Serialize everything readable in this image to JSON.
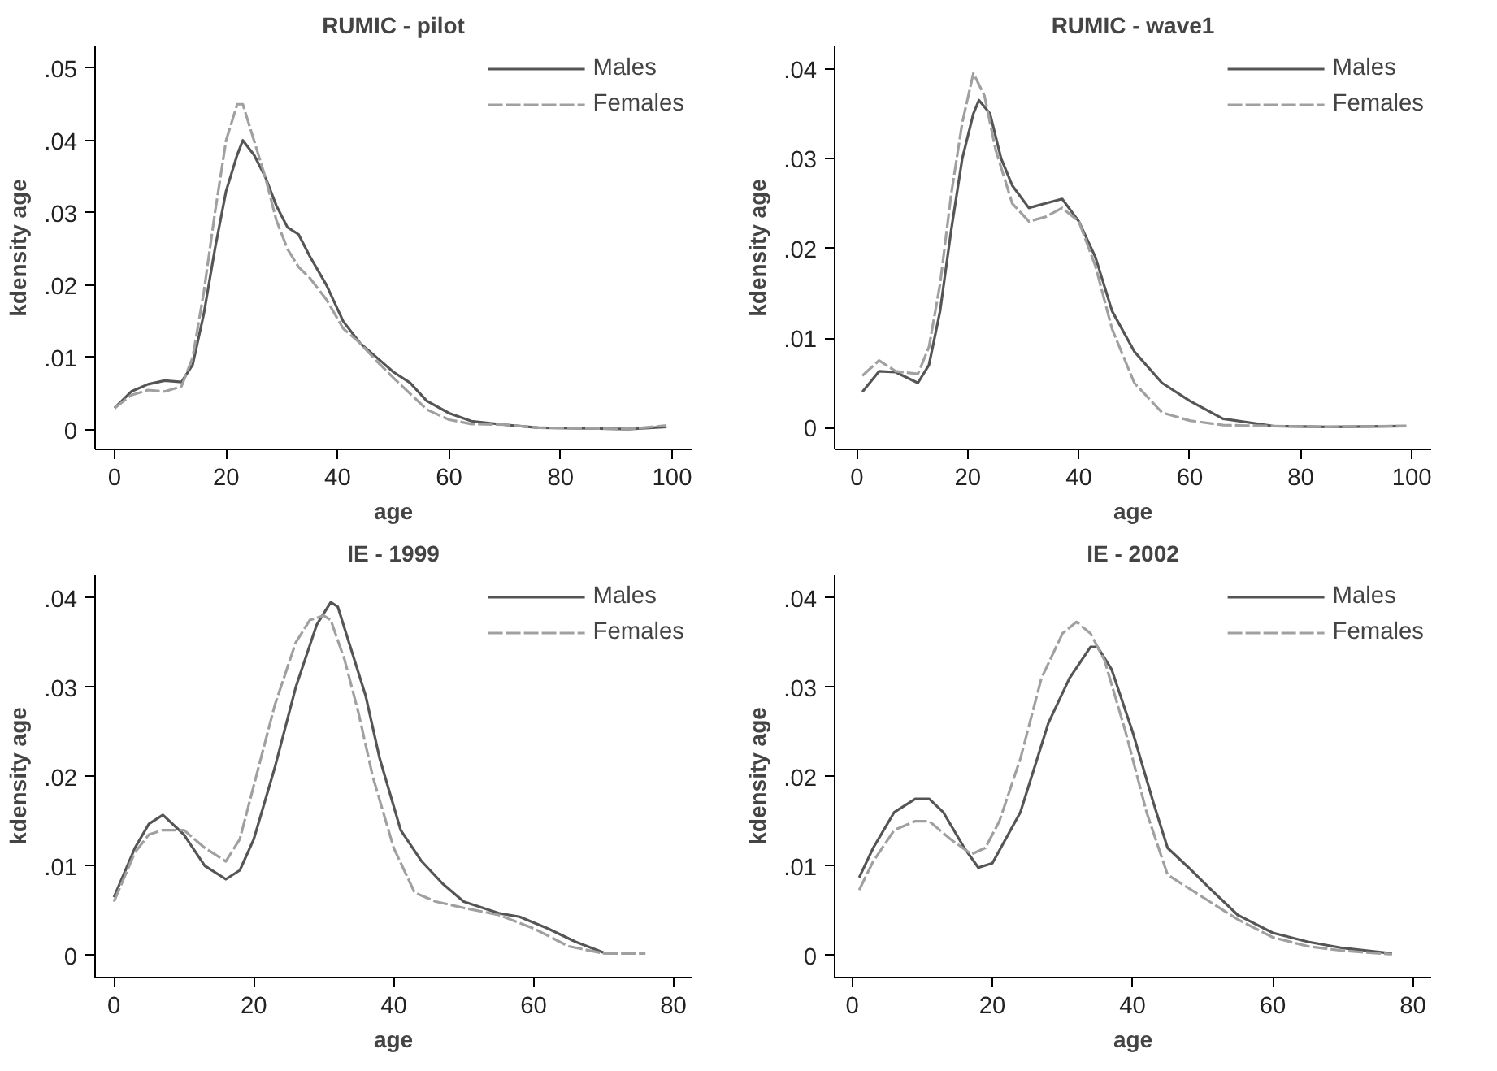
{
  "chart_data": [
    {
      "type": "line",
      "title": "RUMIC - pilot",
      "xlabel": "age",
      "ylabel": "kdensity age",
      "legend": "top right",
      "grid": false,
      "xlim": [
        -3.5,
        103.5
      ],
      "xticks": [
        0,
        20,
        40,
        60,
        80,
        100
      ],
      "ylim": [
        -0.0027,
        0.053
      ],
      "yticks": [
        {
          "value": 0,
          "label": "0"
        },
        {
          "value": 0.01,
          "label": ".01"
        },
        {
          "value": 0.02,
          "label": ".02"
        },
        {
          "value": 0.03,
          "label": ".03"
        },
        {
          "value": 0.04,
          "label": ".04"
        },
        {
          "value": 0.05,
          "label": ".05"
        }
      ],
      "series": [
        {
          "name": "Males",
          "color": "#555555",
          "line_style": "solid",
          "x": [
            0,
            3,
            6,
            9,
            12,
            14,
            16,
            18,
            20,
            22,
            23,
            25,
            27,
            29,
            31,
            33,
            35,
            38,
            41,
            44,
            47,
            50,
            53,
            56,
            60,
            64,
            70,
            76,
            85,
            92,
            99
          ],
          "values": [
            0.003,
            0.0053,
            0.0063,
            0.0068,
            0.0066,
            0.009,
            0.016,
            0.025,
            0.033,
            0.038,
            0.04,
            0.038,
            0.035,
            0.031,
            0.028,
            0.027,
            0.024,
            0.02,
            0.015,
            0.012,
            0.01,
            0.008,
            0.0065,
            0.004,
            0.0023,
            0.0012,
            0.0007,
            0.0003,
            0.0002,
            0.0001,
            0.0004
          ]
        },
        {
          "name": "Females",
          "color": "#a0a0a0",
          "line_style": "dashed",
          "x": [
            0,
            3,
            6,
            9,
            12,
            14,
            16,
            18,
            20,
            22,
            23,
            25,
            27,
            29,
            31,
            33,
            35,
            38,
            41,
            44,
            47,
            50,
            53,
            56,
            60,
            64,
            70,
            76,
            85,
            92,
            99
          ],
          "values": [
            0.003,
            0.0048,
            0.0055,
            0.0053,
            0.006,
            0.01,
            0.019,
            0.03,
            0.04,
            0.045,
            0.045,
            0.04,
            0.035,
            0.029,
            0.025,
            0.0225,
            0.021,
            0.018,
            0.014,
            0.012,
            0.0095,
            0.0072,
            0.005,
            0.0028,
            0.0014,
            0.0008,
            0.0007,
            0.0003,
            0.0002,
            0.0001,
            0.0006
          ]
        }
      ]
    },
    {
      "type": "line",
      "title": "RUMIC - wave1",
      "xlabel": "age",
      "ylabel": "kdensity age",
      "legend": "top right",
      "grid": false,
      "xlim": [
        -4,
        103.5
      ],
      "xticks": [
        0,
        20,
        40,
        60,
        80,
        100
      ],
      "ylim": [
        -0.0024,
        0.0425
      ],
      "yticks": [
        {
          "value": 0,
          "label": "0"
        },
        {
          "value": 0.01,
          "label": ".01"
        },
        {
          "value": 0.02,
          "label": ".02"
        },
        {
          "value": 0.03,
          "label": ".03"
        },
        {
          "value": 0.04,
          "label": ".04"
        }
      ],
      "series": [
        {
          "name": "Males",
          "color": "#555555",
          "line_style": "solid",
          "x": [
            1,
            4,
            7,
            11,
            13,
            15,
            17,
            19,
            21,
            22,
            24,
            26,
            28,
            31,
            34,
            37,
            40,
            43,
            46,
            50,
            55,
            60,
            66,
            75,
            85,
            99
          ],
          "values": [
            0.004,
            0.0063,
            0.0062,
            0.005,
            0.007,
            0.013,
            0.022,
            0.03,
            0.035,
            0.0365,
            0.035,
            0.03,
            0.027,
            0.0245,
            0.025,
            0.0255,
            0.023,
            0.019,
            0.013,
            0.0085,
            0.005,
            0.003,
            0.001,
            0.0002,
            0.0001,
            0.0002
          ]
        },
        {
          "name": "Females",
          "color": "#a0a0a0",
          "line_style": "dashed",
          "x": [
            1,
            4,
            7,
            11,
            13,
            15,
            17,
            19,
            21,
            23,
            25,
            28,
            31,
            34,
            37,
            40,
            43,
            46,
            50,
            55,
            60,
            66,
            75,
            85,
            99
          ],
          "values": [
            0.0058,
            0.0075,
            0.0063,
            0.006,
            0.009,
            0.016,
            0.026,
            0.034,
            0.0395,
            0.037,
            0.031,
            0.025,
            0.023,
            0.0235,
            0.0245,
            0.023,
            0.018,
            0.011,
            0.005,
            0.0017,
            0.0008,
            0.0003,
            0.0002,
            0.0001,
            0.0002
          ]
        }
      ]
    },
    {
      "type": "line",
      "title": "IE - 1999",
      "xlabel": "age",
      "ylabel": "kdensity age",
      "legend": "top right",
      "grid": false,
      "xlim": [
        -2.7,
        82.6
      ],
      "xticks": [
        0,
        20,
        40,
        60,
        80
      ],
      "ylim": [
        -0.0025,
        0.0426
      ],
      "yticks": [
        {
          "value": 0,
          "label": "0"
        },
        {
          "value": 0.01,
          "label": ".01"
        },
        {
          "value": 0.02,
          "label": ".02"
        },
        {
          "value": 0.03,
          "label": ".03"
        },
        {
          "value": 0.04,
          "label": ".04"
        }
      ],
      "series": [
        {
          "name": "Males",
          "color": "#555555",
          "line_style": "solid",
          "x": [
            0,
            3,
            5,
            7,
            10,
            13,
            16,
            18,
            20,
            23,
            26,
            29,
            31,
            32,
            34,
            36,
            38,
            41,
            44,
            47,
            50,
            55,
            58,
            62,
            66,
            70
          ],
          "values": [
            0.0065,
            0.012,
            0.0147,
            0.0157,
            0.0135,
            0.01,
            0.0085,
            0.0095,
            0.013,
            0.021,
            0.03,
            0.037,
            0.0395,
            0.039,
            0.034,
            0.029,
            0.022,
            0.014,
            0.0105,
            0.008,
            0.006,
            0.0047,
            0.0043,
            0.003,
            0.0015,
            0.0003
          ]
        },
        {
          "name": "Females",
          "color": "#a0a0a0",
          "line_style": "dashed",
          "x": [
            0,
            3,
            5,
            7,
            10,
            13,
            16,
            18,
            20,
            23,
            26,
            28,
            30,
            31,
            33,
            35,
            37,
            40,
            43,
            46,
            50,
            55,
            60,
            65,
            70,
            76
          ],
          "values": [
            0.006,
            0.0115,
            0.0135,
            0.014,
            0.014,
            0.012,
            0.0105,
            0.013,
            0.019,
            0.028,
            0.035,
            0.0375,
            0.038,
            0.0375,
            0.033,
            0.027,
            0.02,
            0.012,
            0.007,
            0.006,
            0.0053,
            0.0045,
            0.003,
            0.001,
            0.0002,
            0.0002
          ]
        }
      ]
    },
    {
      "type": "line",
      "title": "IE - 2002",
      "xlabel": "age",
      "ylabel": "kdensity age",
      "legend": "top right",
      "grid": false,
      "xlim": [
        -2.5,
        82.6
      ],
      "xticks": [
        0,
        20,
        40,
        60,
        80
      ],
      "ylim": [
        -0.0025,
        0.0426
      ],
      "yticks": [
        {
          "value": 0,
          "label": "0"
        },
        {
          "value": 0.01,
          "label": ".01"
        },
        {
          "value": 0.02,
          "label": ".02"
        },
        {
          "value": 0.03,
          "label": ".03"
        },
        {
          "value": 0.04,
          "label": ".04"
        }
      ],
      "series": [
        {
          "name": "Males",
          "color": "#555555",
          "line_style": "solid",
          "x": [
            1,
            3,
            6,
            9,
            11,
            13,
            16,
            18,
            20,
            24,
            28,
            31,
            34,
            35,
            37,
            40,
            43,
            45,
            48,
            51,
            55,
            60,
            65,
            70,
            77
          ],
          "values": [
            0.0087,
            0.012,
            0.016,
            0.0175,
            0.0175,
            0.016,
            0.012,
            0.0098,
            0.0103,
            0.016,
            0.026,
            0.031,
            0.0345,
            0.0345,
            0.032,
            0.025,
            0.017,
            0.012,
            0.0098,
            0.0075,
            0.0045,
            0.0025,
            0.0015,
            0.0008,
            0.0002
          ]
        },
        {
          "name": "Females",
          "color": "#a0a0a0",
          "line_style": "dashed",
          "x": [
            1,
            3,
            6,
            9,
            11,
            14,
            17,
            19,
            21,
            24,
            27,
            30,
            32,
            34,
            36,
            39,
            42,
            45,
            48,
            51,
            55,
            60,
            65,
            70,
            77
          ],
          "values": [
            0.0073,
            0.0105,
            0.014,
            0.015,
            0.015,
            0.013,
            0.0113,
            0.012,
            0.015,
            0.022,
            0.031,
            0.036,
            0.0373,
            0.036,
            0.033,
            0.025,
            0.016,
            0.009,
            0.0075,
            0.006,
            0.004,
            0.002,
            0.001,
            0.0005,
            0.0001
          ]
        }
      ]
    }
  ]
}
